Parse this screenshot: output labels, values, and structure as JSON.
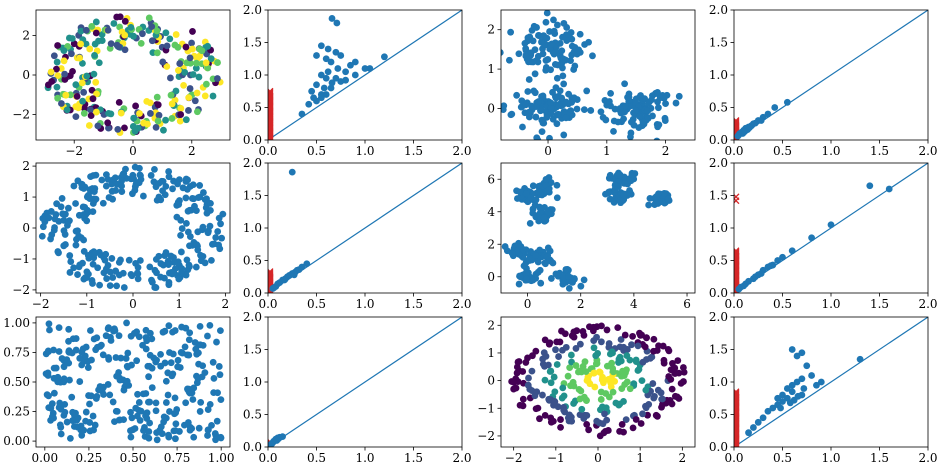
{
  "figure": {
    "description": "Grid of scatter plots and persistence diagrams"
  },
  "colors": {
    "scatter": "#1f77b4",
    "diagonal": "#1f77b4",
    "h0": "#d62728",
    "h1": "#1f77b4",
    "viridis": [
      "#440154",
      "#3b528b",
      "#21918c",
      "#5ec962",
      "#fde725"
    ]
  },
  "chart_data": [
    {
      "id": "r0c0",
      "type": "scatter",
      "kind": "ring-colored",
      "xlim": [
        -3.3,
        3.3
      ],
      "ylim": [
        -3.3,
        3.3
      ],
      "xticks": [
        -2,
        0,
        2
      ],
      "yticks": [
        -2,
        0,
        2
      ],
      "xtick_labels": [
        "−2",
        "0",
        "2"
      ],
      "ytick_labels": [
        "−2",
        "0",
        "2"
      ],
      "params": {
        "inner": 1.2,
        "outer": 3.0,
        "n": 300,
        "seed": 11
      }
    },
    {
      "id": "r0c1",
      "type": "scatter",
      "kind": "persistence",
      "xlim": [
        0,
        2
      ],
      "ylim": [
        0,
        2
      ],
      "xticks": [
        0,
        0.5,
        1,
        1.5,
        2
      ],
      "yticks": [
        0,
        0.5,
        1,
        1.5,
        2
      ],
      "xtick_labels": [
        "0.0",
        "0.5",
        "1.0",
        "1.5",
        "2.0"
      ],
      "ytick_labels": [
        "0.0",
        "0.5",
        "1.0",
        "1.5",
        "2.0"
      ],
      "h0_max": 0.75,
      "points": [
        [
          0.66,
          1.87
        ],
        [
          0.71,
          1.8
        ],
        [
          0.55,
          1.45
        ],
        [
          0.62,
          1.4
        ],
        [
          0.7,
          1.35
        ],
        [
          0.5,
          1.3
        ],
        [
          0.6,
          1.25
        ],
        [
          0.75,
          1.3
        ],
        [
          1.2,
          1.28
        ],
        [
          1.05,
          1.1
        ],
        [
          0.85,
          1.15
        ],
        [
          1.0,
          1.1
        ],
        [
          0.9,
          1.2
        ],
        [
          0.65,
          1.2
        ],
        [
          0.72,
          1.1
        ],
        [
          0.8,
          1.05
        ],
        [
          0.55,
          1.0
        ],
        [
          0.6,
          0.95
        ],
        [
          0.7,
          0.95
        ],
        [
          0.75,
          0.9
        ],
        [
          0.5,
          0.85
        ],
        [
          0.58,
          0.8
        ],
        [
          0.65,
          0.8
        ],
        [
          0.45,
          0.75
        ],
        [
          0.55,
          0.7
        ],
        [
          0.6,
          0.7
        ],
        [
          0.5,
          0.6
        ],
        [
          0.42,
          0.55
        ],
        [
          0.35,
          0.4
        ],
        [
          0.55,
          0.65
        ],
        [
          0.47,
          0.65
        ],
        [
          0.66,
          0.88
        ],
        [
          0.8,
          0.92
        ],
        [
          0.9,
          1.0
        ],
        [
          0.62,
          1.05
        ]
      ]
    },
    {
      "id": "r0c2",
      "type": "scatter",
      "kind": "blobs3",
      "xlim": [
        -0.8,
        2.5
      ],
      "ylim": [
        -0.8,
        2.5
      ],
      "xticks": [
        0,
        1,
        2
      ],
      "yticks": [
        0,
        1,
        2
      ],
      "xtick_labels": [
        "0",
        "1",
        "2"
      ],
      "ytick_labels": [
        "0",
        "1",
        "2"
      ],
      "params": {
        "centers": [
          [
            0,
            1.5
          ],
          [
            0,
            0
          ],
          [
            1.5,
            0
          ]
        ],
        "n": 100,
        "spread": 0.3,
        "seed": 23
      }
    },
    {
      "id": "r0c3",
      "type": "scatter",
      "kind": "persistence",
      "xlim": [
        0,
        2
      ],
      "ylim": [
        0,
        2
      ],
      "xticks": [
        0,
        0.5,
        1,
        1.5,
        2
      ],
      "yticks": [
        0,
        0.5,
        1,
        1.5,
        2
      ],
      "xtick_labels": [
        "0.0",
        "0.5",
        "1.0",
        "1.5",
        "2.0"
      ],
      "ytick_labels": [
        "0.0",
        "0.5",
        "1.0",
        "1.5",
        "2.0"
      ],
      "h0_max": 0.3,
      "points": [
        [
          0.55,
          0.58
        ],
        [
          0.42,
          0.5
        ],
        [
          0.35,
          0.4
        ],
        [
          0.3,
          0.35
        ],
        [
          0.25,
          0.3
        ],
        [
          0.2,
          0.25
        ],
        [
          0.18,
          0.22
        ],
        [
          0.15,
          0.2
        ],
        [
          0.12,
          0.18
        ],
        [
          0.1,
          0.15
        ],
        [
          0.08,
          0.12
        ],
        [
          0.06,
          0.1
        ],
        [
          0.05,
          0.08
        ],
        [
          0.14,
          0.16
        ],
        [
          0.22,
          0.26
        ],
        [
          0.28,
          0.3
        ],
        [
          0.09,
          0.1
        ],
        [
          0.16,
          0.19
        ],
        [
          0.04,
          0.06
        ],
        [
          0.11,
          0.13
        ]
      ]
    },
    {
      "id": "r1c0",
      "type": "scatter",
      "kind": "ring",
      "xlim": [
        -2.1,
        2.1
      ],
      "ylim": [
        -2.1,
        2.1
      ],
      "xticks": [
        -2,
        -1,
        0,
        1,
        2
      ],
      "yticks": [
        -2,
        -1,
        0,
        1,
        2
      ],
      "xtick_labels": [
        "−2",
        "−1",
        "0",
        "1",
        "2"
      ],
      "ytick_labels": [
        "−2",
        "−1",
        "0",
        "1",
        "2"
      ],
      "params": {
        "inner": 1.0,
        "outer": 2.0,
        "n": 300,
        "seed": 37
      }
    },
    {
      "id": "r1c1",
      "type": "scatter",
      "kind": "persistence",
      "xlim": [
        0,
        2
      ],
      "ylim": [
        0,
        2
      ],
      "xticks": [
        0,
        0.5,
        1,
        1.5,
        2
      ],
      "yticks": [
        0,
        0.5,
        1,
        1.5,
        2
      ],
      "xtick_labels": [
        "0.0",
        "0.5",
        "1.0",
        "1.5",
        "2.0"
      ],
      "ytick_labels": [
        "0.0",
        "0.5",
        "1.0",
        "1.5",
        "2.0"
      ],
      "h0_max": 0.33,
      "points": [
        [
          0.25,
          1.86
        ],
        [
          0.4,
          0.45
        ],
        [
          0.35,
          0.4
        ],
        [
          0.3,
          0.35
        ],
        [
          0.28,
          0.32
        ],
        [
          0.25,
          0.3
        ],
        [
          0.22,
          0.27
        ],
        [
          0.2,
          0.25
        ],
        [
          0.18,
          0.22
        ],
        [
          0.15,
          0.2
        ],
        [
          0.12,
          0.16
        ],
        [
          0.1,
          0.14
        ],
        [
          0.08,
          0.1
        ],
        [
          0.06,
          0.08
        ],
        [
          0.32,
          0.36
        ],
        [
          0.27,
          0.28
        ],
        [
          0.17,
          0.2
        ],
        [
          0.05,
          0.07
        ]
      ]
    },
    {
      "id": "r1c2",
      "type": "scatter",
      "kind": "blobs-many",
      "xlim": [
        -1,
        6.3
      ],
      "ylim": [
        -1,
        7
      ],
      "xticks": [
        0,
        2,
        4,
        6
      ],
      "yticks": [
        0,
        2,
        4,
        6
      ],
      "xtick_labels": [
        "0",
        "2",
        "4",
        "6"
      ],
      "ytick_labels": [
        "0",
        "2",
        "4",
        "6"
      ],
      "params": {
        "centers": [
          [
            0,
            5
          ],
          [
            0.8,
            5.5
          ],
          [
            0.5,
            3.8
          ],
          [
            -0.3,
            1.5
          ],
          [
            0.5,
            1.2
          ],
          [
            0,
            0
          ],
          [
            1.5,
            0
          ],
          [
            3.5,
            6
          ],
          [
            3.5,
            5
          ],
          [
            5,
            4.8
          ]
        ],
        "n": 30,
        "spread": 0.25,
        "seed": 41
      }
    },
    {
      "id": "r1c3",
      "type": "scatter",
      "kind": "persistence",
      "xlim": [
        0,
        2
      ],
      "ylim": [
        0,
        2
      ],
      "xticks": [
        0,
        0.5,
        1,
        1.5,
        2
      ],
      "yticks": [
        0,
        0.5,
        1,
        1.5,
        2
      ],
      "xtick_labels": [
        "0.0",
        "0.5",
        "1.0",
        "1.5",
        "2.0"
      ],
      "ytick_labels": [
        "0.0",
        "0.5",
        "1.0",
        "1.5",
        "2.0"
      ],
      "h0_max": 0.65,
      "h0_extra": [
        1.42,
        1.48
      ],
      "points": [
        [
          1.4,
          1.65
        ],
        [
          1.6,
          1.6
        ],
        [
          1.0,
          1.05
        ],
        [
          0.8,
          0.85
        ],
        [
          0.6,
          0.65
        ],
        [
          0.5,
          0.55
        ],
        [
          0.45,
          0.5
        ],
        [
          0.4,
          0.43
        ],
        [
          0.35,
          0.4
        ],
        [
          0.3,
          0.35
        ],
        [
          0.28,
          0.3
        ],
        [
          0.25,
          0.28
        ],
        [
          0.2,
          0.22
        ],
        [
          0.15,
          0.18
        ],
        [
          0.12,
          0.14
        ],
        [
          0.1,
          0.11
        ],
        [
          0.07,
          0.09
        ],
        [
          0.05,
          0.06
        ],
        [
          0.22,
          0.25
        ],
        [
          0.38,
          0.42
        ]
      ]
    },
    {
      "id": "r2c0",
      "type": "scatter",
      "kind": "uniform",
      "xlim": [
        -0.05,
        1.05
      ],
      "ylim": [
        -0.05,
        1.05
      ],
      "xticks": [
        0,
        0.25,
        0.5,
        0.75,
        1
      ],
      "yticks": [
        0,
        0.25,
        0.5,
        0.75,
        1
      ],
      "xtick_labels": [
        "0.00",
        "0.25",
        "0.50",
        "0.75",
        "1.00"
      ],
      "ytick_labels": [
        "0.00",
        "0.25",
        "0.50",
        "0.75",
        "1.00"
      ],
      "params": {
        "n": 300,
        "seed": 53
      }
    },
    {
      "id": "r2c1",
      "type": "scatter",
      "kind": "persistence",
      "xlim": [
        0,
        2
      ],
      "ylim": [
        0,
        2
      ],
      "xticks": [
        0,
        0.5,
        1,
        1.5,
        2
      ],
      "yticks": [
        0,
        0.5,
        1,
        1.5,
        2
      ],
      "xtick_labels": [
        "0.0",
        "0.5",
        "1.0",
        "1.5",
        "2.0"
      ],
      "ytick_labels": [
        "0.0",
        "0.5",
        "1.0",
        "1.5",
        "2.0"
      ],
      "h0_max": 0.08,
      "points": [
        [
          0.08,
          0.12
        ],
        [
          0.1,
          0.14
        ],
        [
          0.12,
          0.15
        ],
        [
          0.06,
          0.09
        ],
        [
          0.05,
          0.07
        ],
        [
          0.15,
          0.16
        ],
        [
          0.04,
          0.05
        ],
        [
          0.09,
          0.1
        ],
        [
          0.11,
          0.13
        ],
        [
          0.03,
          0.04
        ]
      ]
    },
    {
      "id": "r2c2",
      "type": "scatter",
      "kind": "disk-colored",
      "xlim": [
        -2.3,
        2.3
      ],
      "ylim": [
        -2.4,
        2.3
      ],
      "xticks": [
        -2,
        -1,
        0,
        1,
        2
      ],
      "yticks": [
        -2,
        -1,
        0,
        1,
        2
      ],
      "xtick_labels": [
        "−2",
        "−1",
        "0",
        "1",
        "2"
      ],
      "ytick_labels": [
        "−2",
        "−1",
        "0",
        "1",
        "2"
      ],
      "params": {
        "n": 300,
        "seed": 67
      }
    },
    {
      "id": "r2c3",
      "type": "scatter",
      "kind": "persistence",
      "xlim": [
        0,
        2
      ],
      "ylim": [
        0,
        2
      ],
      "xticks": [
        0,
        0.5,
        1,
        1.5,
        2
      ],
      "yticks": [
        0,
        0.5,
        1,
        1.5,
        2
      ],
      "xtick_labels": [
        "0.0",
        "0.5",
        "1.0",
        "1.5",
        "2.0"
      ],
      "ytick_labels": [
        "0.0",
        "0.5",
        "1.0",
        "1.5",
        "2.0"
      ],
      "h0_max": 0.85,
      "points": [
        [
          0.6,
          1.5
        ],
        [
          0.65,
          1.4
        ],
        [
          0.7,
          1.45
        ],
        [
          1.3,
          1.35
        ],
        [
          0.75,
          1.25
        ],
        [
          0.8,
          1.1
        ],
        [
          0.9,
          1.0
        ],
        [
          0.7,
          1.05
        ],
        [
          0.65,
          1.0
        ],
        [
          0.6,
          0.95
        ],
        [
          0.55,
          0.9
        ],
        [
          0.6,
          0.85
        ],
        [
          0.5,
          0.8
        ],
        [
          0.45,
          0.75
        ],
        [
          0.55,
          0.75
        ],
        [
          0.5,
          0.7
        ],
        [
          0.45,
          0.65
        ],
        [
          0.4,
          0.6
        ],
        [
          0.35,
          0.55
        ],
        [
          0.3,
          0.45
        ],
        [
          0.25,
          0.38
        ],
        [
          0.2,
          0.3
        ],
        [
          0.15,
          0.22
        ],
        [
          0.85,
          0.95
        ],
        [
          0.7,
          0.8
        ],
        [
          0.62,
          0.72
        ],
        [
          0.58,
          0.68
        ],
        [
          0.66,
          0.78
        ],
        [
          0.72,
          0.9
        ],
        [
          0.48,
          0.6
        ]
      ]
    }
  ]
}
